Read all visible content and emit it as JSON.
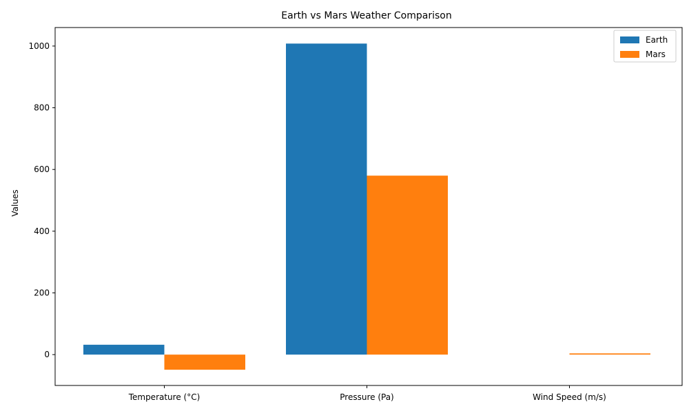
{
  "chart_data": {
    "type": "bar",
    "title": "Earth vs Mars Weather Comparison",
    "xlabel": "",
    "ylabel": "Values",
    "categories": [
      "Temperature (°C)",
      "Pressure (Pa)",
      "Wind Speed (m/s)"
    ],
    "series": [
      {
        "name": "Earth",
        "values": [
          32,
          1008,
          0
        ],
        "color": "#1f77b4"
      },
      {
        "name": "Mars",
        "values": [
          -49,
          580,
          4
        ],
        "color": "#ff7f0e"
      }
    ],
    "ylim": [
      -100,
      1060
    ],
    "yticks": [
      0,
      200,
      400,
      600,
      800,
      1000
    ],
    "grid": false,
    "legend_position": "top-right"
  }
}
